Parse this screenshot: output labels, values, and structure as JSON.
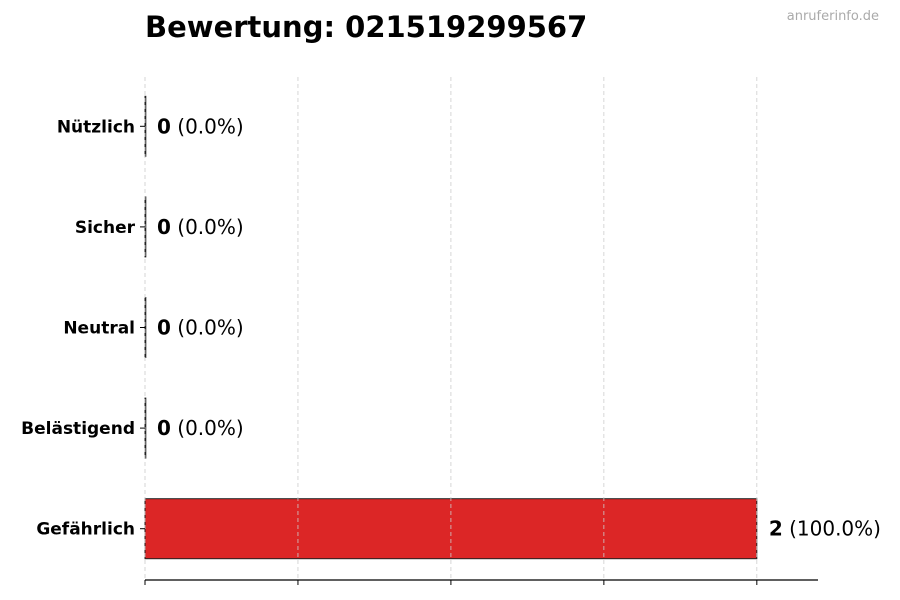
{
  "chart_data": {
    "type": "bar",
    "orientation": "horizontal",
    "title": "Bewertung: 021519299567",
    "categories": [
      "Nützlich",
      "Sicher",
      "Neutral",
      "Belästigend",
      "Gefährlich"
    ],
    "values": [
      0,
      0,
      0,
      0,
      2
    ],
    "percent_labels": [
      "(0.0%)",
      "(0.0%)",
      "(0.0%)",
      "(0.0%)",
      "(100.0%)"
    ],
    "bar_color": "#dc2626",
    "xlim": [
      0,
      2.2
    ],
    "xticks": [
      0,
      0.5,
      1,
      1.5,
      2
    ],
    "grid": "vertical dashed",
    "xlabel": "",
    "ylabel": ""
  },
  "watermark": "anruferinfo.de"
}
